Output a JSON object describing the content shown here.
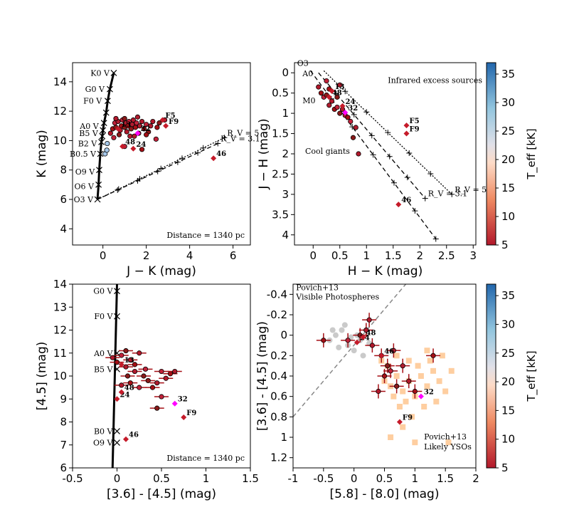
{
  "chart_data": [
    {
      "panel": "top-left",
      "type": "scatter",
      "title": "",
      "xlabel": "J − K (mag)",
      "ylabel": "K (mag)",
      "xlim": [
        -1.4,
        6.8
      ],
      "ylim": [
        15.3,
        2.9
      ],
      "xticks": [
        0,
        2,
        4,
        6
      ],
      "yticks": [
        4,
        6,
        8,
        10,
        12,
        14
      ],
      "annotation": "Distance = 1340 pc",
      "main_sequence": {
        "points": [
          [
            -0.25,
            6.0
          ],
          [
            -0.2,
            7.0
          ],
          [
            -0.17,
            8.0
          ],
          [
            -0.12,
            9.1
          ],
          [
            -0.07,
            9.9
          ],
          [
            -0.03,
            10.3
          ],
          [
            0.0,
            10.7
          ],
          [
            0.05,
            11.2
          ],
          [
            0.15,
            11.9
          ],
          [
            0.22,
            12.7
          ],
          [
            0.32,
            13.5
          ],
          [
            0.5,
            14.6
          ]
        ],
        "labels": [
          {
            "text": "O3 V",
            "x": -0.25,
            "y": 6.0
          },
          {
            "text": "O6 V",
            "x": -0.22,
            "y": 6.9
          },
          {
            "text": "O9 V",
            "x": -0.18,
            "y": 7.9
          },
          {
            "text": "B0.5 V",
            "x": -0.12,
            "y": 9.1
          },
          {
            "text": "B2 V",
            "x": -0.08,
            "y": 9.8
          },
          {
            "text": "B5 V",
            "x": -0.03,
            "y": 10.5
          },
          {
            "text": "A0 V",
            "x": 0.0,
            "y": 11.0
          },
          {
            "text": "F0 V",
            "x": 0.15,
            "y": 12.7
          },
          {
            "text": "G0 V",
            "x": 0.27,
            "y": 13.5
          },
          {
            "text": "K0 V",
            "x": 0.5,
            "y": 14.6
          }
        ]
      },
      "reddening_vectors": [
        {
          "name": "R_V = 3.1",
          "from": [
            -0.25,
            6.0
          ],
          "to": [
            5.3,
            9.8
          ],
          "style": "dashed",
          "label": "R_V = 3.1"
        },
        {
          "name": "R_V = 5",
          "from": [
            -0.25,
            6.0
          ],
          "to": [
            5.6,
            10.2
          ],
          "style": "dotted",
          "label": "R_V = 5"
        }
      ],
      "sources": [
        [
          0.35,
          10.5
        ],
        [
          0.45,
          10.8
        ],
        [
          0.55,
          11.2
        ],
        [
          0.6,
          10.9
        ],
        [
          0.7,
          11.3
        ],
        [
          0.8,
          10.7
        ],
        [
          0.85,
          11.0
        ],
        [
          0.9,
          11.4
        ],
        [
          1.0,
          10.9
        ],
        [
          1.05,
          11.2
        ],
        [
          1.1,
          10.6
        ],
        [
          1.15,
          11.0
        ],
        [
          1.2,
          11.3
        ],
        [
          1.3,
          10.8
        ],
        [
          1.35,
          11.1
        ],
        [
          1.4,
          11.4
        ],
        [
          1.5,
          10.9
        ],
        [
          1.55,
          11.2
        ],
        [
          1.65,
          10.5
        ],
        [
          1.7,
          11.0
        ],
        [
          1.8,
          11.3
        ],
        [
          1.9,
          10.8
        ],
        [
          2.0,
          11.1
        ],
        [
          2.1,
          10.6
        ],
        [
          2.2,
          11.0
        ],
        [
          2.3,
          11.3
        ],
        [
          2.5,
          10.9
        ],
        [
          0.5,
          10.2
        ],
        [
          0.75,
          10.4
        ],
        [
          1.25,
          10.3
        ],
        [
          1.45,
          10.3
        ],
        [
          2.0,
          10.4
        ],
        [
          2.45,
          10.1
        ],
        [
          1.0,
          11.5
        ],
        [
          1.6,
          11.6
        ],
        [
          0.6,
          11.5
        ],
        [
          1.8,
          9.4
        ],
        [
          1.0,
          9.6
        ],
        [
          2.6,
          11.2
        ],
        [
          2.85,
          11.4
        ]
      ],
      "special": [
        {
          "label": "46",
          "x": 5.1,
          "y": 8.8
        },
        {
          "label": "48",
          "x": 0.9,
          "y": 9.6
        },
        {
          "label": "24",
          "x": 1.4,
          "y": 9.45
        },
        {
          "label": "32",
          "x": 1.6,
          "y": 10.5
        },
        {
          "label": "13",
          "x": 0.7,
          "y": 10.8
        },
        {
          "label": "F9",
          "x": 2.9,
          "y": 11.0
        },
        {
          "label": "F5",
          "x": 2.75,
          "y": 11.4
        }
      ],
      "blue_sources": [
        [
          0.1,
          9.1
        ],
        [
          0.18,
          9.35
        ],
        [
          0.2,
          9.8
        ]
      ]
    },
    {
      "panel": "top-right",
      "type": "scatter",
      "title": "",
      "xlabel": "H − K (mag)",
      "ylabel": "J − H (mag)",
      "xlim": [
        -0.35,
        3.05
      ],
      "ylim": [
        -0.25,
        4.25
      ],
      "xticks": [
        0.0,
        0.5,
        1.0,
        1.5,
        2.0,
        2.5,
        3.0
      ],
      "yticks": [
        0.0,
        0.5,
        1.0,
        1.5,
        2.0,
        2.5,
        3.0,
        3.5,
        4.0
      ],
      "text_labels": [
        "Cool giants",
        "Infrared excess sources",
        "M0",
        "A0",
        "O3"
      ],
      "reddening_vectors": [
        {
          "name": "upper",
          "from": [
            -0.05,
            -0.05
          ],
          "to": [
            2.3,
            4.1
          ],
          "style": "dashed",
          "label": ""
        },
        {
          "name": "R_V = 3.1",
          "from": [
            0.1,
            0.0
          ],
          "to": [
            2.1,
            3.1
          ],
          "style": "dashed",
          "label": "R_V = 3.1"
        },
        {
          "name": "R_V = 5",
          "from": [
            0.2,
            -0.05
          ],
          "to": [
            2.6,
            3.0
          ],
          "style": "dotted",
          "label": "R_V = 5"
        }
      ],
      "sources": [
        [
          0.1,
          0.35
        ],
        [
          0.15,
          0.5
        ],
        [
          0.2,
          0.6
        ],
        [
          0.25,
          0.55
        ],
        [
          0.3,
          0.8
        ],
        [
          0.35,
          0.7
        ],
        [
          0.4,
          0.9
        ],
        [
          0.45,
          0.85
        ],
        [
          0.5,
          1.0
        ],
        [
          0.55,
          0.9
        ],
        [
          0.6,
          1.05
        ],
        [
          0.65,
          1.1
        ],
        [
          0.7,
          1.2
        ],
        [
          0.75,
          1.6
        ],
        [
          0.8,
          1.35
        ],
        [
          0.85,
          2.0
        ],
        [
          0.3,
          0.4
        ],
        [
          0.25,
          0.2
        ],
        [
          0.45,
          0.6
        ],
        [
          0.5,
          0.3
        ]
      ],
      "special": [
        {
          "label": "46",
          "x": 1.6,
          "y": 3.25
        },
        {
          "label": "32",
          "x": 0.6,
          "y": 0.98
        },
        {
          "label": "24",
          "x": 0.55,
          "y": 0.82
        },
        {
          "label": "48",
          "x": 0.3,
          "y": 0.6
        },
        {
          "label": "13",
          "x": 0.35,
          "y": 0.45
        },
        {
          "label": "F9",
          "x": 1.75,
          "y": 1.5
        },
        {
          "label": "F5",
          "x": 1.75,
          "y": 1.3
        }
      ]
    },
    {
      "panel": "bottom-left",
      "type": "scatter",
      "title": "",
      "xlabel": "[3.6] - [4.5] (mag)",
      "ylabel": "[4.5] (mag)",
      "xlim": [
        -0.5,
        1.5
      ],
      "ylim": [
        14,
        6
      ],
      "xticks": [
        -0.5,
        0.0,
        0.5,
        1.0,
        1.5
      ],
      "yticks": [
        6,
        7,
        8,
        9,
        10,
        11,
        12,
        13,
        14
      ],
      "annotation": "Distance = 1340 pc",
      "main_sequence_labels": [
        "O9 V",
        "B0 V",
        "B5 V",
        "A0 V",
        "F0 V",
        "G0 V"
      ],
      "sources": [
        [
          0.05,
          9.6
        ],
        [
          0.15,
          9.7
        ],
        [
          0.25,
          9.5
        ],
        [
          0.35,
          9.8
        ],
        [
          0.45,
          9.7
        ],
        [
          0.55,
          9.9
        ],
        [
          0.6,
          10.1
        ],
        [
          0.5,
          10.2
        ],
        [
          0.3,
          10.0
        ],
        [
          0.2,
          10.2
        ],
        [
          0.1,
          10.4
        ],
        [
          0.0,
          10.6
        ],
        [
          0.05,
          10.9
        ],
        [
          0.1,
          11.1
        ],
        [
          0.15,
          10.7
        ],
        [
          0.25,
          11.0
        ],
        [
          0.4,
          9.5
        ],
        [
          0.5,
          9.1
        ],
        [
          0.45,
          8.6
        ],
        [
          0.65,
          10.2
        ],
        [
          -0.05,
          10.8
        ],
        [
          0.2,
          10.5
        ],
        [
          0.32,
          10.3
        ],
        [
          0.12,
          10.0
        ]
      ],
      "special": [
        {
          "label": "46",
          "x": 0.1,
          "y": 7.25
        },
        {
          "label": "F9",
          "x": 0.75,
          "y": 8.2
        },
        {
          "label": "32",
          "x": 0.65,
          "y": 8.8
        },
        {
          "label": "24",
          "x": 0.0,
          "y": 9.0
        },
        {
          "label": "48",
          "x": 0.05,
          "y": 9.3
        },
        {
          "label": "13",
          "x": 0.05,
          "y": 10.5
        }
      ]
    },
    {
      "panel": "bottom-right",
      "type": "scatter",
      "title": "",
      "xlabel": "[5.8] - [8.0] (mag)",
      "ylabel": "[3.6] - [4.5] (mag)",
      "xlim": [
        -1.0,
        2.0
      ],
      "ylim": [
        -0.5,
        1.3
      ],
      "xticks": [
        -1.0,
        -0.5,
        0.0,
        0.5,
        1.0,
        1.5,
        2.0
      ],
      "yticks": [
        -0.4,
        -0.2,
        0.0,
        0.2,
        0.4,
        0.6,
        0.8,
        1.0,
        1.2
      ],
      "text_labels": [
        "Likely YSOs",
        "Povich+13",
        "Visible Photospheres",
        "Povich+13"
      ],
      "divider": {
        "from": [
          -1.0,
          0.8
        ],
        "to": [
          0.85,
          -0.5
        ],
        "style": "dashed"
      },
      "yso_points": [
        [
          0.6,
          0.5
        ],
        [
          0.7,
          0.4
        ],
        [
          0.8,
          0.55
        ],
        [
          0.9,
          0.45
        ],
        [
          1.0,
          0.6
        ],
        [
          1.1,
          0.4
        ],
        [
          1.2,
          0.5
        ],
        [
          1.3,
          0.35
        ],
        [
          0.55,
          0.3
        ],
        [
          0.75,
          0.7
        ],
        [
          0.85,
          0.65
        ],
        [
          0.95,
          0.8
        ],
        [
          1.05,
          0.3
        ],
        [
          1.15,
          0.7
        ],
        [
          1.25,
          0.25
        ],
        [
          1.4,
          0.45
        ],
        [
          1.5,
          0.55
        ],
        [
          0.65,
          0.6
        ],
        [
          0.5,
          0.45
        ],
        [
          1.6,
          0.35
        ],
        [
          0.45,
          0.25
        ],
        [
          0.8,
          0.9
        ],
        [
          1.0,
          1.05
        ],
        [
          1.35,
          0.65
        ],
        [
          0.7,
          0.2
        ],
        [
          0.9,
          0.25
        ],
        [
          1.2,
          0.15
        ],
        [
          1.45,
          0.2
        ],
        [
          1.55,
          1.05
        ],
        [
          0.6,
          1.0
        ]
      ],
      "photosphere_points": [
        [
          -0.4,
          0.05
        ],
        [
          -0.3,
          0.0
        ],
        [
          -0.2,
          -0.05
        ],
        [
          -0.1,
          0.1
        ],
        [
          0.0,
          0.15
        ],
        [
          0.05,
          0.0
        ],
        [
          0.1,
          0.05
        ],
        [
          -0.15,
          -0.1
        ],
        [
          -0.25,
          0.12
        ],
        [
          0.15,
          0.2
        ],
        [
          -0.35,
          -0.05
        ],
        [
          0.2,
          -0.05
        ],
        [
          0.25,
          0.08
        ],
        [
          -0.05,
          0.02
        ]
      ],
      "sources": [
        [
          0.4,
          0.55
        ],
        [
          0.5,
          0.4
        ],
        [
          0.6,
          0.35
        ],
        [
          0.7,
          0.5
        ],
        [
          0.8,
          0.3
        ],
        [
          0.9,
          0.45
        ],
        [
          1.0,
          0.55
        ],
        [
          0.45,
          0.2
        ],
        [
          0.55,
          0.3
        ],
        [
          0.65,
          0.15
        ],
        [
          0.3,
          0.1
        ],
        [
          -0.5,
          0.05
        ],
        [
          -0.1,
          0.05
        ],
        [
          0.1,
          0.0
        ],
        [
          0.2,
          -0.05
        ],
        [
          0.25,
          -0.15
        ],
        [
          1.3,
          0.2
        ]
      ],
      "special": [
        {
          "label": "F9",
          "x": 0.75,
          "y": 0.85
        },
        {
          "label": "32",
          "x": 1.1,
          "y": 0.6
        },
        {
          "label": "46",
          "x": 0.45,
          "y": 0.2
        },
        {
          "label": "24",
          "x": 0.05,
          "y": 0.07
        },
        {
          "label": "48",
          "x": 0.15,
          "y": 0.02
        }
      ]
    }
  ],
  "colorbar": {
    "label": "T_eff [kK]",
    "ticks": [
      5,
      10,
      15,
      20,
      25,
      30,
      35
    ],
    "range": [
      5,
      37
    ]
  }
}
